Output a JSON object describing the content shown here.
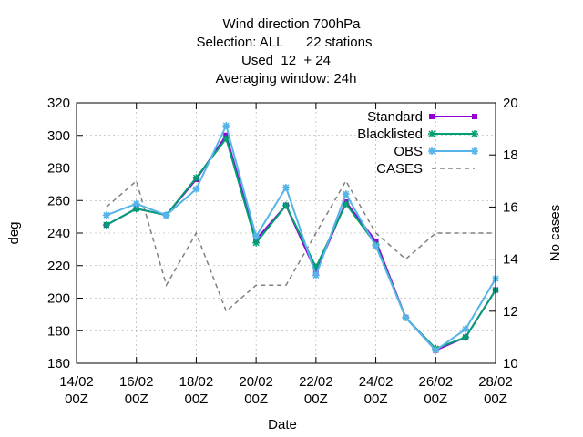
{
  "chart_data": {
    "type": "line",
    "title_lines": [
      "Wind direction 700hPa",
      "Selection: ALL      22 stations",
      "Used  12  + 24",
      "Averaging window: 24h"
    ],
    "xlabel": "Date",
    "ylabel": "deg",
    "y2label": "No cases",
    "ylim": [
      160,
      320
    ],
    "y2lim": [
      10,
      20
    ],
    "y_ticks": [
      160,
      180,
      200,
      220,
      240,
      260,
      280,
      300,
      320
    ],
    "y2_ticks": [
      10,
      12,
      14,
      16,
      18,
      20
    ],
    "x_ticks": [
      {
        "day": 14,
        "line1": "14/02",
        "line2": "00Z"
      },
      {
        "day": 16,
        "line1": "16/02",
        "line2": "00Z"
      },
      {
        "day": 18,
        "line1": "18/02",
        "line2": "00Z"
      },
      {
        "day": 20,
        "line1": "20/02",
        "line2": "00Z"
      },
      {
        "day": 22,
        "line1": "22/02",
        "line2": "00Z"
      },
      {
        "day": 24,
        "line1": "24/02",
        "line2": "00Z"
      },
      {
        "day": 26,
        "line1": "26/02",
        "line2": "00Z"
      },
      {
        "day": 28,
        "line1": "28/02",
        "line2": "00Z"
      }
    ],
    "xlim": [
      14,
      28
    ],
    "grid": true,
    "legend_position": "top-right",
    "x": [
      15,
      16,
      17,
      18,
      19,
      20,
      21,
      22,
      23,
      24,
      25,
      26,
      27,
      28
    ],
    "series": [
      {
        "name": "Standard",
        "axis": "y",
        "color": "#9400d3",
        "style": "solid",
        "marker": "filled-square",
        "values": [
          245,
          255,
          251,
          273,
          300,
          236,
          257,
          216,
          259,
          235,
          188,
          168,
          176,
          205
        ]
      },
      {
        "name": "Blacklisted",
        "axis": "y",
        "color": "#009e73",
        "style": "solid",
        "marker": "star",
        "values": [
          245,
          255,
          251,
          274,
          298,
          234,
          257,
          219,
          258,
          233,
          188,
          169,
          176,
          205
        ]
      },
      {
        "name": "OBS",
        "axis": "y",
        "color": "#56b4e9",
        "style": "solid",
        "marker": "filled-star",
        "values": [
          251,
          258,
          251,
          267,
          306,
          238,
          268,
          214,
          264,
          232,
          188,
          168,
          181,
          212
        ]
      },
      {
        "name": "CASES",
        "axis": "y2",
        "color": "#808080",
        "style": "dashed",
        "marker": "none",
        "values": [
          16,
          17,
          13,
          15,
          12,
          13,
          13,
          15,
          17,
          15,
          14,
          15,
          15,
          15
        ]
      }
    ]
  }
}
